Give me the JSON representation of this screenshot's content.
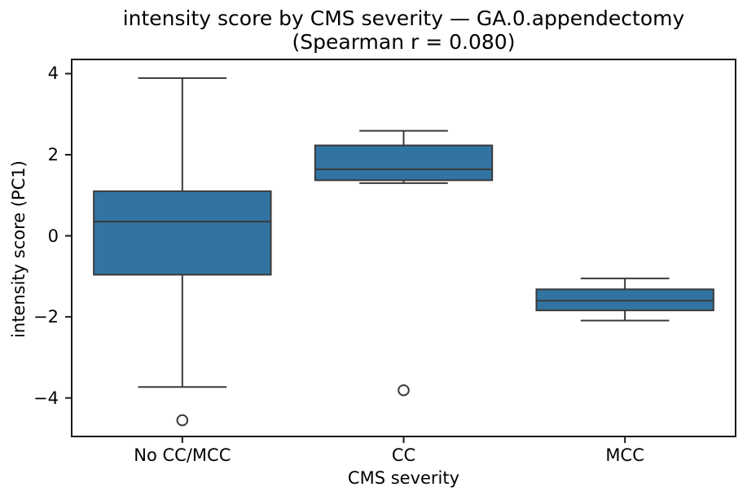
{
  "chart_data": {
    "type": "box",
    "title": "intensity score by CMS severity — GA.0.appendectomy",
    "subtitle": "(Spearman r = 0.080)",
    "xlabel": "CMS severity",
    "ylabel": "intensity score (PC1)",
    "categories": [
      "No CC/MCC",
      "CC",
      "MCC"
    ],
    "ylim": [
      -4.95,
      4.35
    ],
    "yticks": [
      {
        "label": "4",
        "value": 4
      },
      {
        "label": "2",
        "value": 2
      },
      {
        "label": "0",
        "value": 0
      },
      {
        "label": "−2",
        "value": -2
      },
      {
        "label": "−4",
        "value": -4
      }
    ],
    "grid": false,
    "legend": null,
    "colors": {
      "box_fill": "#3274a1",
      "box_line": "#3a3a3a",
      "axis_line": "#1a1a1a",
      "text": "#000000"
    },
    "series": [
      {
        "category": "No CC/MCC",
        "whislo": -3.73,
        "q1": -0.96,
        "med": 0.35,
        "q3": 1.1,
        "whishi": 3.89,
        "outliers": [
          -4.55
        ]
      },
      {
        "category": "CC",
        "whislo": 1.3,
        "q1": 1.37,
        "med": 1.64,
        "q3": 2.23,
        "whishi": 2.59,
        "outliers": [
          -3.81
        ]
      },
      {
        "category": "MCC",
        "whislo": -2.09,
        "q1": -1.84,
        "med": -1.6,
        "q3": -1.32,
        "whishi": -1.05,
        "outliers": []
      }
    ]
  }
}
